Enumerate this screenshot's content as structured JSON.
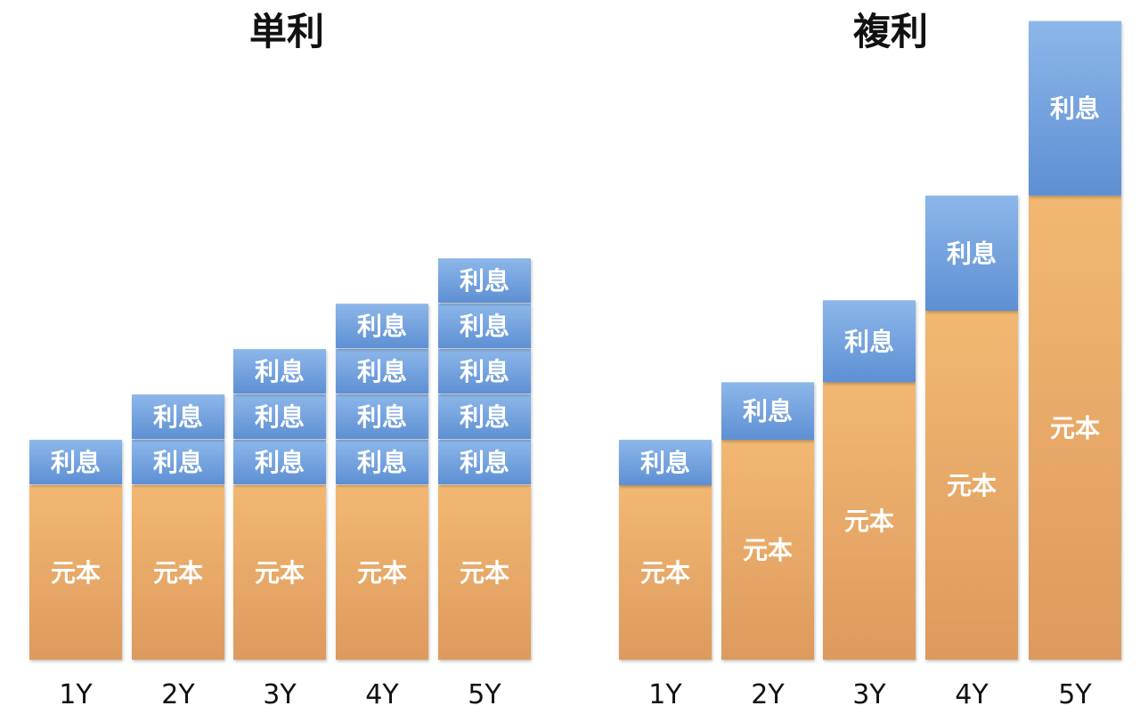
{
  "colors": {
    "interest_top": "#8db7ea",
    "interest_bottom": "#5d8fd3",
    "principal_top": "#f2b872",
    "principal_bottom": "#dd9a5e",
    "text": "#111111",
    "label": "#ffffff"
  },
  "chart_data": [
    {
      "type": "bar",
      "stacked": true,
      "title": "単利",
      "categories": [
        "1Y",
        "2Y",
        "3Y",
        "4Y",
        "5Y"
      ],
      "principal_label": "元本",
      "interest_label": "利息",
      "principal": [
        1,
        1,
        1,
        1,
        1
      ],
      "interest_blocks": [
        1,
        2,
        3,
        4,
        5
      ],
      "interest_unit": 0.26
    },
    {
      "type": "bar",
      "stacked": true,
      "title": "複利",
      "categories": [
        "1Y",
        "2Y",
        "3Y",
        "4Y",
        "5Y"
      ],
      "principal_label": "元本",
      "interest_label": "利息",
      "principal": [
        1.0,
        1.26,
        1.59,
        2.0,
        2.66
      ],
      "interest": [
        0.26,
        0.33,
        0.47,
        0.66,
        1.0
      ]
    }
  ]
}
